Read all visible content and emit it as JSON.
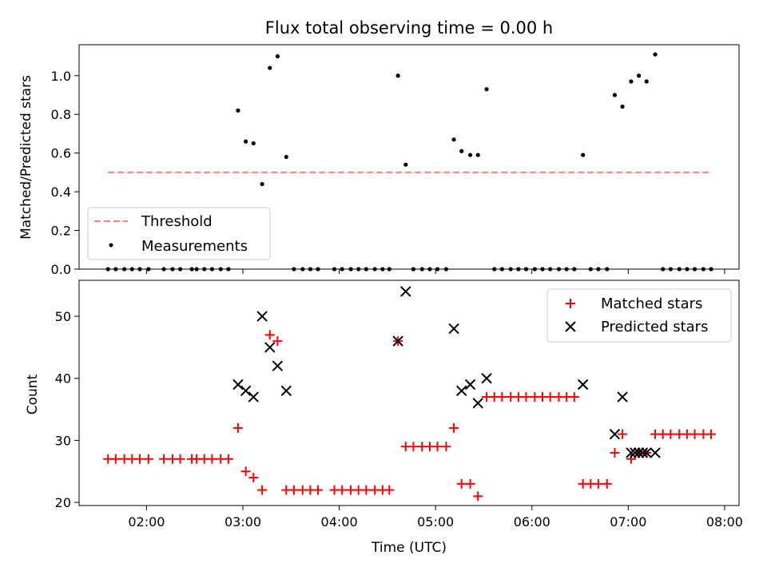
{
  "chart_data": [
    {
      "type": "scatter",
      "title": "Flux total observing time = 0.00 h",
      "ylabel": "Matched/Predicted stars",
      "xlim": [
        1.3,
        8.15
      ],
      "ylim": [
        0,
        1.16
      ],
      "yticks": [
        0.0,
        0.2,
        0.4,
        0.6,
        0.8,
        1.0
      ],
      "yticklabels": [
        "0.0",
        "0.2",
        "0.4",
        "0.6",
        "0.8",
        "1.0"
      ],
      "xticks": [
        2,
        3,
        4,
        5,
        6,
        7,
        8
      ],
      "legend": "lower-left",
      "series": [
        {
          "name": "Threshold",
          "kind": "line",
          "style": "dashed",
          "color": "#ff7f7f",
          "x": [
            1.6,
            7.87
          ],
          "y": [
            0.5,
            0.5
          ]
        },
        {
          "name": "Measurements",
          "kind": "scatter",
          "marker": "dot",
          "color": "#000000",
          "x": [
            1.6,
            1.68,
            1.77,
            1.85,
            1.93,
            2.02,
            2.18,
            2.27,
            2.35,
            2.47,
            2.52,
            2.6,
            2.68,
            2.77,
            2.85,
            2.95,
            3.03,
            3.11,
            3.2,
            3.28,
            3.36,
            3.45,
            3.53,
            3.62,
            3.7,
            3.78,
            3.95,
            4.03,
            4.12,
            4.2,
            4.28,
            4.37,
            4.45,
            4.52,
            4.61,
            4.69,
            4.77,
            4.86,
            4.94,
            5.02,
            5.11,
            5.19,
            5.27,
            5.36,
            5.44,
            5.53,
            5.61,
            5.69,
            5.78,
            5.86,
            5.94,
            6.03,
            6.11,
            6.19,
            6.28,
            6.36,
            6.44,
            6.53,
            6.61,
            6.69,
            6.78,
            6.86,
            6.94,
            7.03,
            7.11,
            7.19,
            7.28,
            7.36,
            7.44,
            7.53,
            7.61,
            7.69,
            7.78,
            7.86
          ],
          "y": [
            0,
            0,
            0,
            0,
            0,
            0,
            0,
            0,
            0,
            0,
            0,
            0,
            0,
            0,
            0,
            0.82,
            0.66,
            0.65,
            0.44,
            1.04,
            1.1,
            0.58,
            0,
            0,
            0,
            0,
            0,
            0,
            0,
            0,
            0,
            0,
            0,
            0,
            1.0,
            0.54,
            0,
            0,
            0,
            0,
            0,
            0.67,
            0.61,
            0.59,
            0.59,
            0.93,
            0,
            0,
            0,
            0,
            0,
            0,
            0,
            0,
            0,
            0,
            0,
            0.59,
            0,
            0,
            0,
            0.9,
            0.84,
            0.97,
            1.0,
            0.97,
            1.11,
            0,
            0,
            0,
            0,
            0,
            0,
            0
          ]
        }
      ]
    },
    {
      "type": "scatter",
      "xlabel": "Time (UTC)",
      "ylabel": "Count",
      "xlim": [
        1.3,
        8.15
      ],
      "ylim": [
        19.5,
        55.8
      ],
      "yticks": [
        20,
        30,
        40,
        50
      ],
      "yticklabels": [
        "20",
        "30",
        "40",
        "50"
      ],
      "xticks": [
        2,
        3,
        4,
        5,
        6,
        7,
        8
      ],
      "xticklabels": [
        "02:00",
        "03:00",
        "04:00",
        "05:00",
        "06:00",
        "07:00",
        "08:00"
      ],
      "legend": "top-right",
      "series": [
        {
          "name": "Matched stars",
          "kind": "scatter",
          "marker": "plus",
          "color": "#ff0000",
          "x": [
            1.6,
            1.68,
            1.77,
            1.85,
            1.93,
            2.02,
            2.18,
            2.27,
            2.35,
            2.47,
            2.52,
            2.6,
            2.68,
            2.77,
            2.85,
            2.95,
            3.03,
            3.11,
            3.2,
            3.28,
            3.36,
            3.45,
            3.53,
            3.62,
            3.7,
            3.78,
            3.95,
            4.03,
            4.12,
            4.2,
            4.28,
            4.37,
            4.45,
            4.52,
            4.61,
            4.69,
            4.77,
            4.86,
            4.94,
            5.02,
            5.11,
            5.19,
            5.27,
            5.36,
            5.44,
            5.53,
            5.61,
            5.69,
            5.78,
            5.86,
            5.94,
            6.03,
            6.11,
            6.19,
            6.28,
            6.36,
            6.44,
            6.53,
            6.61,
            6.69,
            6.78,
            6.86,
            6.94,
            7.03,
            7.11,
            7.19,
            7.28,
            7.36,
            7.44,
            7.53,
            7.61,
            7.69,
            7.78,
            7.86
          ],
          "y": [
            27,
            27,
            27,
            27,
            27,
            27,
            27,
            27,
            27,
            27,
            27,
            27,
            27,
            27,
            27,
            32,
            25,
            24,
            22,
            47,
            46,
            22,
            22,
            22,
            22,
            22,
            22,
            22,
            22,
            22,
            22,
            22,
            22,
            22,
            46,
            29,
            29,
            29,
            29,
            29,
            29,
            32,
            23,
            23,
            21,
            37,
            37,
            37,
            37,
            37,
            37,
            37,
            37,
            37,
            37,
            37,
            37,
            23,
            23,
            23,
            23,
            28,
            31,
            27,
            28,
            28,
            31,
            31,
            31,
            31,
            31,
            31,
            31,
            31
          ]
        },
        {
          "name": "Predicted stars",
          "kind": "scatter",
          "marker": "x",
          "color": "#000000",
          "x": [
            2.95,
            3.03,
            3.11,
            3.2,
            3.28,
            3.36,
            3.45,
            4.61,
            4.69,
            5.19,
            5.27,
            5.36,
            5.44,
            5.53,
            6.53,
            6.86,
            6.94,
            7.03,
            7.07,
            7.11,
            7.15,
            7.19,
            7.28
          ],
          "y": [
            39,
            38,
            37,
            50,
            45,
            42,
            38,
            46,
            54,
            48,
            38,
            39,
            36,
            40,
            39,
            31,
            37,
            28,
            28,
            28,
            28,
            28,
            28
          ]
        }
      ]
    }
  ],
  "legend_top": {
    "threshold_label": "Threshold",
    "measurements_label": "Measurements"
  },
  "legend_bottom": {
    "matched_label": "Matched stars",
    "predicted_label": "Predicted stars"
  }
}
